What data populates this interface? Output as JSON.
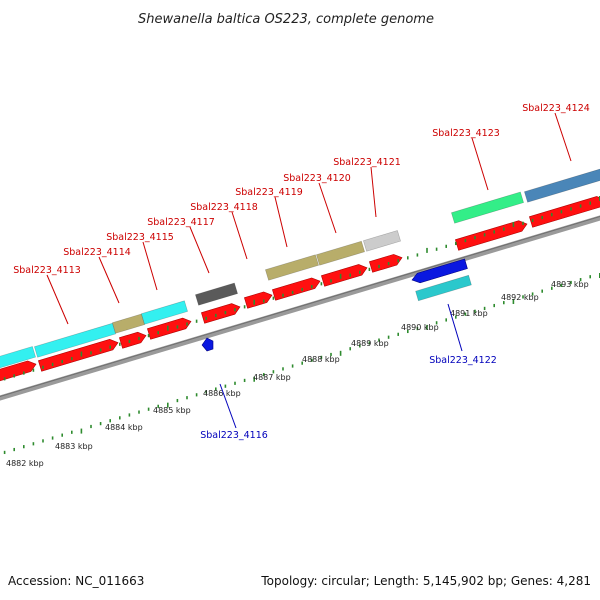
{
  "title": "Shewanella baltica OS223, complete genome",
  "footer": {
    "accession": "Accession: NC_011663",
    "stats": "Topology: circular; Length: 5,145,902 bp; Genes: 4,281"
  },
  "colors": {
    "backbone": "#8c8c8c",
    "tick": "#2e8b2e",
    "cds_red": "#ff1010",
    "label_top": "#cc0000",
    "label_bottom": "#0000bb",
    "cyan": "#33f0f0",
    "tan": "#b8ad6a",
    "darkgray": "#5a5a5a",
    "lightgray": "#cccccc",
    "green": "#33ee88",
    "steelblue": "#4a86b8",
    "blue": "#0a18e0",
    "teal": "#2bc8cc"
  },
  "kbp_labels": [
    "4882 kbp",
    "4883 kbp",
    "4884 kbp",
    "4885 kbp",
    "4886 kbp",
    "4887 kbp",
    "4888 kbp",
    "4889 kbp",
    "4890 kbp",
    "4891 kbp",
    "4892 kbp",
    "4893 kbp"
  ],
  "gene_labels_top": [
    "Sbal223_4113",
    "Sbal223_4114",
    "Sbal223_4115",
    "Sbal223_4117",
    "Sbal223_4118",
    "Sbal223_4119",
    "Sbal223_4120",
    "Sbal223_4121",
    "Sbal223_4123",
    "Sbal223_4124"
  ],
  "gene_labels_bottom": [
    "Sbal223_4116",
    "Sbal223_4122"
  ]
}
